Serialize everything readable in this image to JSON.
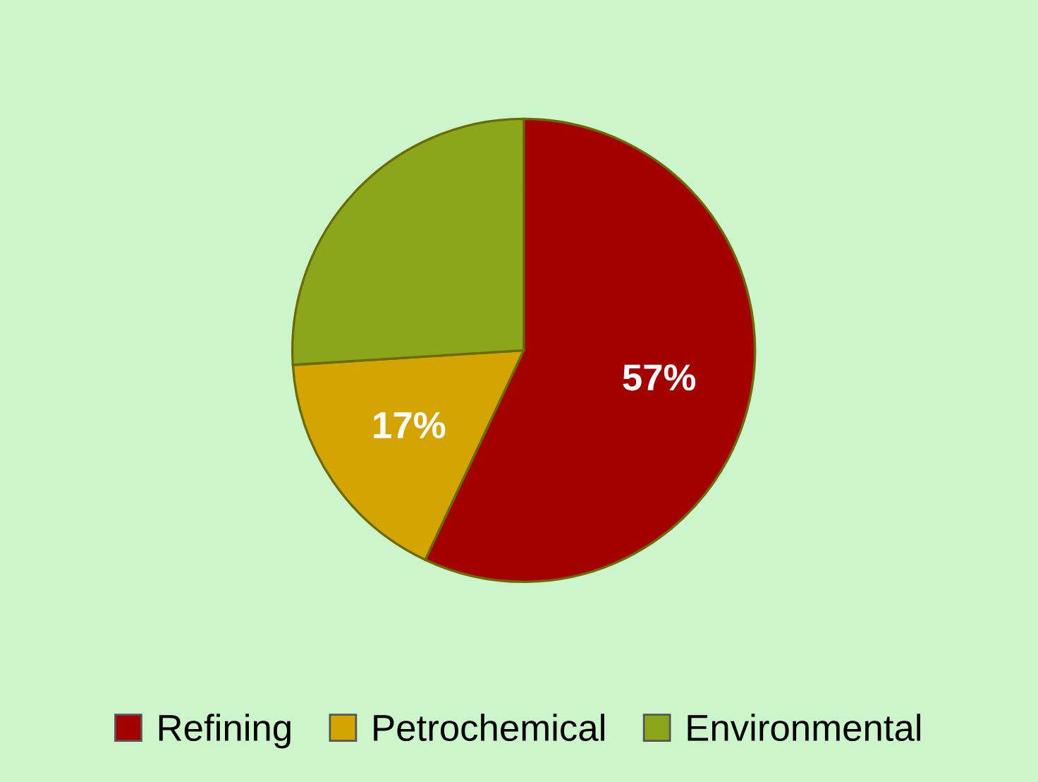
{
  "chart_data": {
    "type": "pie",
    "categories": [
      "Refining",
      "Petrochemical",
      "Environmental"
    ],
    "values": [
      57,
      17,
      26
    ],
    "colors": [
      "#a30000",
      "#d4a400",
      "#8ca61c"
    ],
    "value_labels": [
      "57%",
      "17%",
      null
    ],
    "legend": "bottom"
  }
}
